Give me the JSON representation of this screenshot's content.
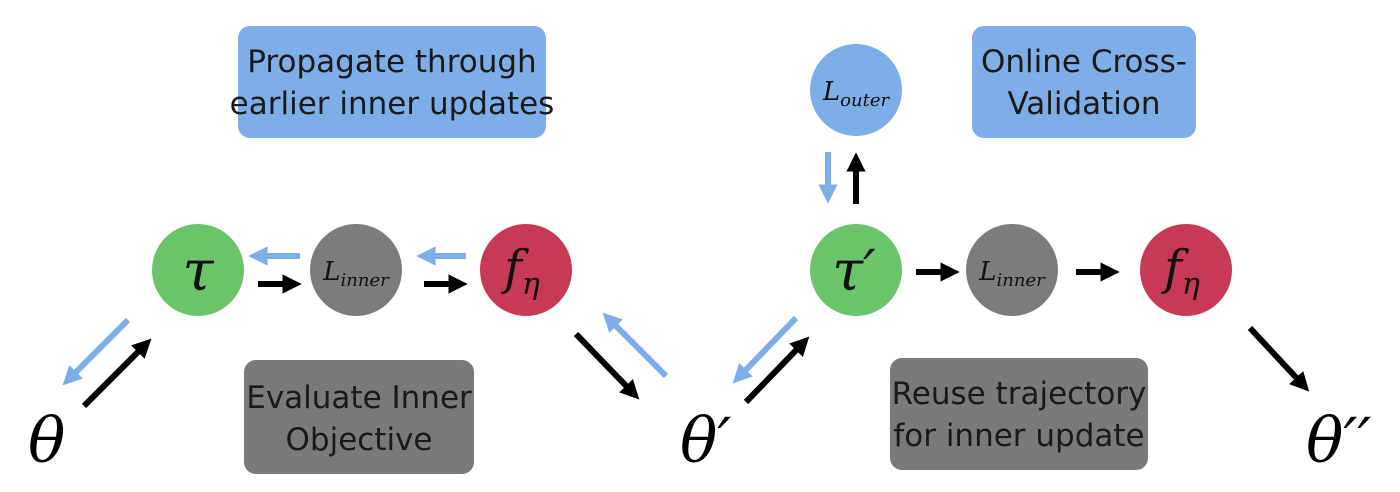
{
  "colors": {
    "blue_box": "#7eaee8",
    "gray_box": "#7a7a7a",
    "green_node": "#6cc46a",
    "gray_node": "#7c7c7c",
    "red_node": "#c73a55",
    "blue_node": "#7eaee8",
    "black_arrow": "#000000",
    "blue_arrow": "#7eaee8"
  },
  "labels": {
    "propagate_line1": "Propagate through",
    "propagate_line2": "earlier inner updates",
    "online_line1": "Online Cross-",
    "online_line2": "Validation",
    "evaluate_line1": "Evaluate Inner",
    "evaluate_line2": "Objective",
    "reuse_line1": "Reuse trajectory",
    "reuse_line2": "for inner update"
  },
  "nodes": {
    "tau": {
      "symbol": "τ",
      "prime": ""
    },
    "l_inner_1": {
      "base": "L",
      "subscript": "inner"
    },
    "f_eta_1": {
      "base": "f",
      "subscript": "η"
    },
    "tau_prime": {
      "symbol": "τ",
      "prime": "′"
    },
    "l_outer": {
      "base": "L",
      "subscript": "outer"
    },
    "l_inner_2": {
      "base": "L",
      "subscript": "inner"
    },
    "f_eta_2": {
      "base": "f",
      "subscript": "η"
    }
  },
  "thetas": {
    "theta": "θ",
    "theta_prime": "θ′",
    "theta_double_prime": "θ′′"
  },
  "icons": {
    "arrows": "arrow-icon"
  }
}
